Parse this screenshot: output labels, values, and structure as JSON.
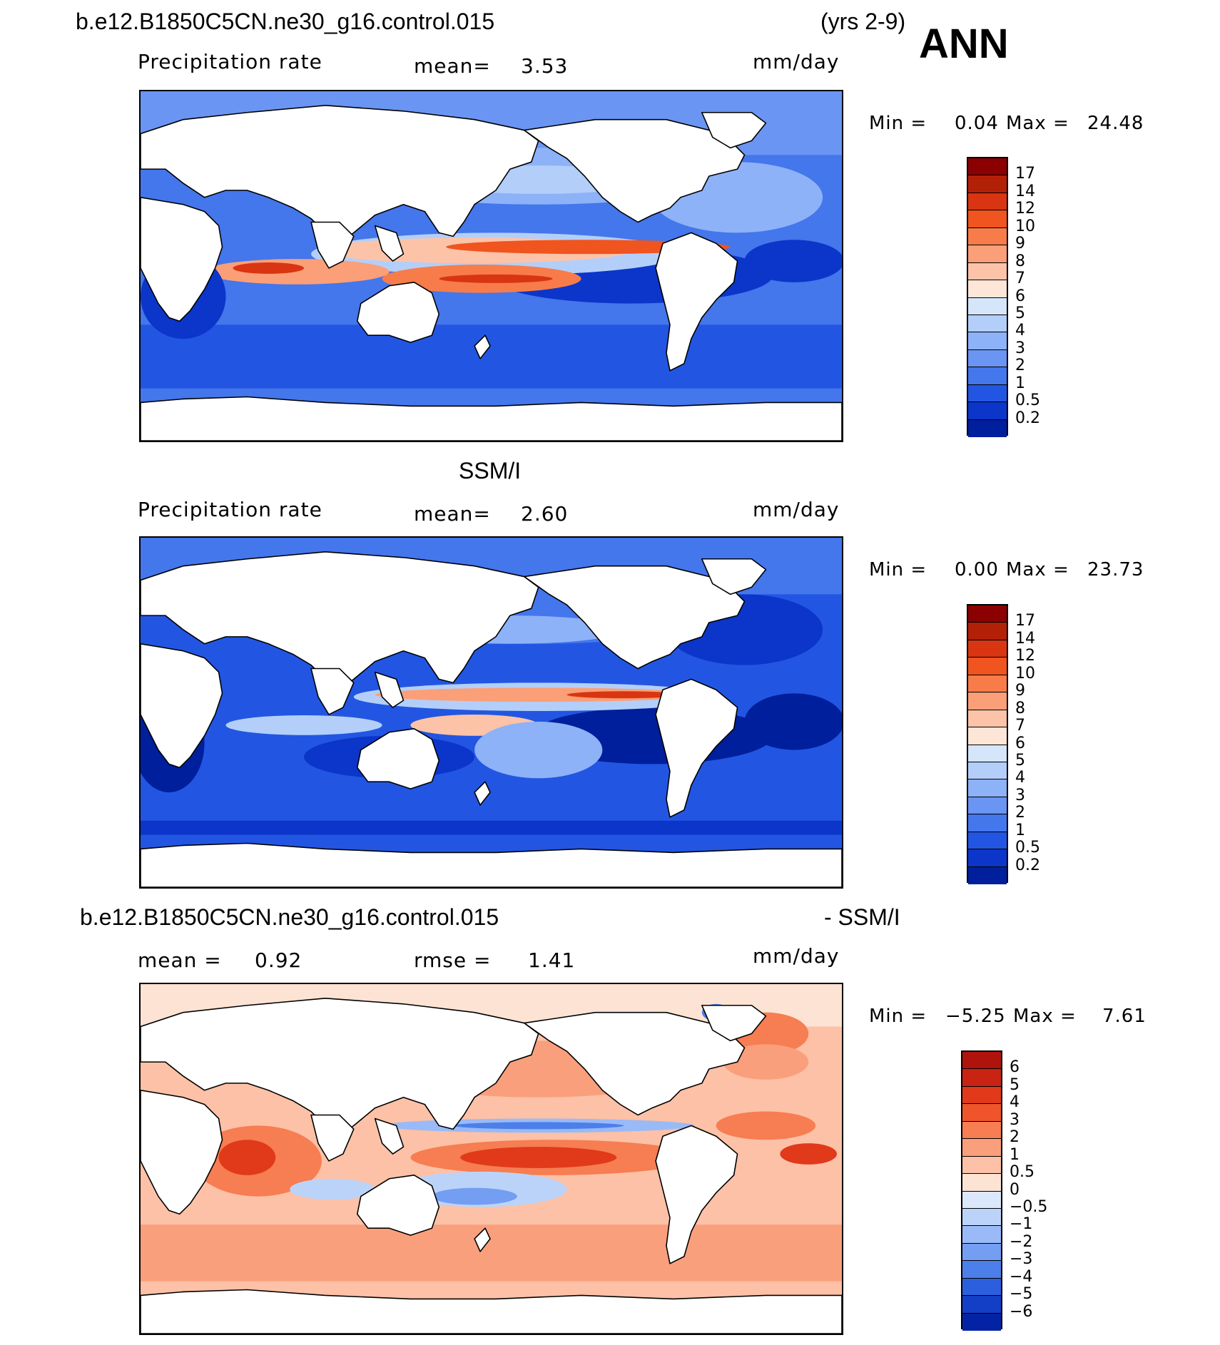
{
  "header": {
    "case_name": "b.e12.B1850C5CN.ne30_g16.control.015",
    "years": "(yrs 2-9)",
    "season": "ANN"
  },
  "panels": [
    {
      "id": "model",
      "title": "",
      "variable": "Precipitation rate",
      "mean_label": "mean=",
      "mean_value": "3.53",
      "units": "mm/day",
      "min_label": "Min =",
      "min_value": "0.04",
      "max_label": "Max =",
      "max_value": "24.48"
    },
    {
      "id": "obs",
      "title": "SSM/I",
      "variable": "Precipitation rate",
      "mean_label": "mean=",
      "mean_value": "2.60",
      "units": "mm/day",
      "min_label": "Min =",
      "min_value": "0.00",
      "max_label": "Max =",
      "max_value": "23.73"
    },
    {
      "id": "diff",
      "title": "b.e12.B1850C5CN.ne30_g16.control.015",
      "title_suffix": "- SSM/I",
      "mean_label": "mean =",
      "mean_value": "0.92",
      "rmse_label": "rmse =",
      "rmse_value": "1.41",
      "units": "mm/day",
      "min_label": "Min =",
      "min_value": "−5.25",
      "max_label": "Max =",
      "max_value": "7.61"
    }
  ],
  "colorbar_precip": {
    "ticks": [
      "17",
      "14",
      "12",
      "10",
      "9",
      "8",
      "7",
      "6",
      "5",
      "4",
      "3",
      "2",
      "1",
      "0.5",
      "0.2"
    ],
    "colors": [
      "#8b0000",
      "#b22008",
      "#d93512",
      "#f0541f",
      "#f77c4a",
      "#fa9f78",
      "#fcc3a8",
      "#fde6d8",
      "#d5e6fb",
      "#b3cff9",
      "#8db2f7",
      "#6a95f2",
      "#4476ec",
      "#2256e2",
      "#0b36c9",
      "#001f9c"
    ]
  },
  "colorbar_diff": {
    "ticks": [
      "6",
      "5",
      "4",
      "3",
      "2",
      "1",
      "0.5",
      "0",
      "−0.5",
      "−1",
      "−2",
      "−3",
      "−4",
      "−5",
      "−6"
    ],
    "colors": [
      "#b0120c",
      "#c92413",
      "#e03a1a",
      "#f0542a",
      "#f77d52",
      "#fa9f7c",
      "#fcc1a6",
      "#fde3d4",
      "#dbe7fb",
      "#bcd3f9",
      "#99baf7",
      "#749ef2",
      "#4d7fea",
      "#2b5fde",
      "#133fc6",
      "#0423a4"
    ]
  }
}
